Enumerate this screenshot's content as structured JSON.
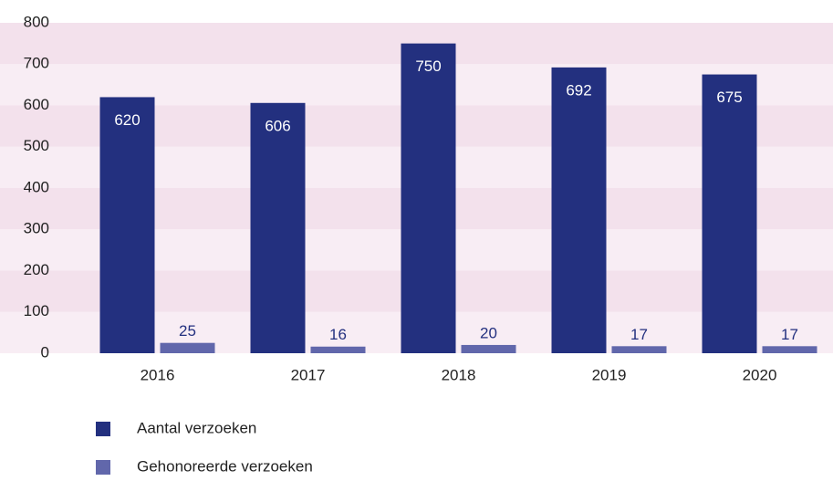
{
  "chart_data": {
    "type": "bar",
    "categories": [
      "2016",
      "2017",
      "2018",
      "2019",
      "2020"
    ],
    "series": [
      {
        "name": "Aantal verzoeken",
        "color": "#23307f",
        "values": [
          620,
          606,
          750,
          692,
          675
        ]
      },
      {
        "name": "Gehonoreerde verzoeken",
        "color": "#6167ab",
        "values": [
          25,
          16,
          20,
          17,
          17
        ]
      }
    ],
    "ylim": [
      0,
      800
    ],
    "yticks": [
      0,
      100,
      200,
      300,
      400,
      500,
      600,
      700,
      800
    ],
    "grid": true
  }
}
